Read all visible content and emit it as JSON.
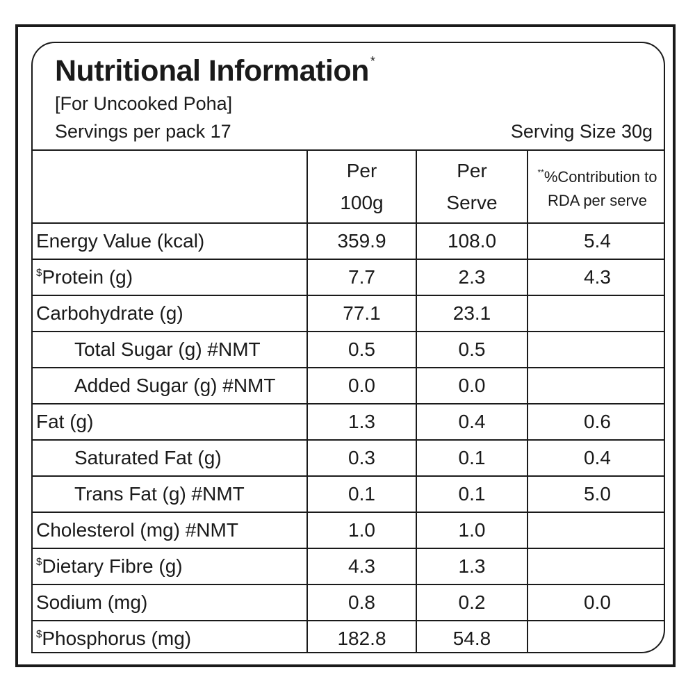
{
  "header": {
    "title": "Nutritional Information",
    "title_mark": "*",
    "subtitle": "[For Uncooked Poha]",
    "servings_per_pack": "Servings per pack 17",
    "serving_size": "Serving Size 30g"
  },
  "table": {
    "columns": {
      "per_100g_line1": "Per",
      "per_100g_line2": "100g",
      "per_serve_line1": "Per",
      "per_serve_line2": "Serve",
      "rda_mark": "**",
      "rda_line1": "%Contribution to",
      "rda_line2": "RDA per serve"
    },
    "rows": [
      {
        "prefix": "",
        "name": "Energy Value (kcal)",
        "per_100g": "359.9",
        "per_serve": "108.0",
        "rda": "5.4"
      },
      {
        "prefix": "$",
        "name": "Protein (g)",
        "per_100g": "7.7",
        "per_serve": "2.3",
        "rda": "4.3"
      },
      {
        "prefix": "",
        "name": "Carbohydrate (g)",
        "per_100g": "77.1",
        "per_serve": "23.1",
        "rda": ""
      },
      {
        "prefix": "",
        "name": "Total Sugar (g) #NMT",
        "per_100g": "0.5",
        "per_serve": "0.5",
        "rda": ""
      },
      {
        "prefix": "",
        "name": "Added Sugar (g) #NMT",
        "per_100g": "0.0",
        "per_serve": "0.0",
        "rda": ""
      },
      {
        "prefix": "",
        "name": "Fat (g)",
        "per_100g": "1.3",
        "per_serve": "0.4",
        "rda": "0.6"
      },
      {
        "prefix": "",
        "name": "Saturated Fat (g)",
        "per_100g": "0.3",
        "per_serve": "0.1",
        "rda": "0.4"
      },
      {
        "prefix": "",
        "name": "Trans Fat (g) #NMT",
        "per_100g": "0.1",
        "per_serve": "0.1",
        "rda": "5.0"
      },
      {
        "prefix": "",
        "name": "Cholesterol (mg) #NMT",
        "per_100g": "1.0",
        "per_serve": "1.0",
        "rda": ""
      },
      {
        "prefix": "$",
        "name": "Dietary Fibre (g)",
        "per_100g": "4.3",
        "per_serve": "1.3",
        "rda": ""
      },
      {
        "prefix": "",
        "name": "Sodium (mg)",
        "per_100g": "0.8",
        "per_serve": "0.2",
        "rda": "0.0"
      },
      {
        "prefix": "$",
        "name": "Phosphorus (mg)",
        "per_100g": "182.8",
        "per_serve": "54.8",
        "rda": ""
      }
    ]
  },
  "colors": {
    "ink": "#1a1a1a",
    "background": "#ffffff"
  }
}
